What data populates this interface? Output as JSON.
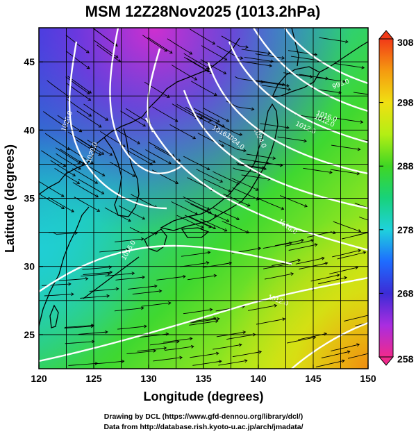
{
  "title": "MSM 12Z28Nov2025 (1013.2hPa)",
  "x_axis": {
    "label": "Longitude (degrees)",
    "range": [
      120,
      150
    ],
    "ticks": [
      "120",
      "125",
      "130",
      "135",
      "140",
      "145",
      "150"
    ]
  },
  "y_axis": {
    "label": "Latitude  (degrees)",
    "range": [
      22.5,
      47.5
    ],
    "ticks": [
      "25",
      "30",
      "35",
      "40",
      "45"
    ]
  },
  "colorbar": {
    "range": [
      258,
      308
    ],
    "ticks": [
      "308",
      "298",
      "288",
      "278",
      "268",
      "258"
    ],
    "colors": [
      "#f02a8c",
      "#a92de0",
      "#3c2cd6",
      "#1e6cff",
      "#1fd2dc",
      "#18d27a",
      "#3fd624",
      "#b4ee14",
      "#f0e012",
      "#f59a10",
      "#f23a18"
    ]
  },
  "contour_labels": [
    "996.0",
    "1012.0",
    "1016.0",
    "1020.0",
    "1020.0",
    "1024.0",
    "1024.0",
    "1012.0",
    "1016.0",
    "1016.0",
    "1012.0",
    "1016.0"
  ],
  "credits": {
    "line1": "Drawing by DCL (https://www.gfd-dennou.org/library/dcl/)",
    "line2": "Data from http://database.rish.kyoto-u.ac.jp/arch/jmadata/"
  },
  "colors": {
    "grid": "#000000",
    "contour": "#ffffff",
    "coast": "#000000"
  }
}
